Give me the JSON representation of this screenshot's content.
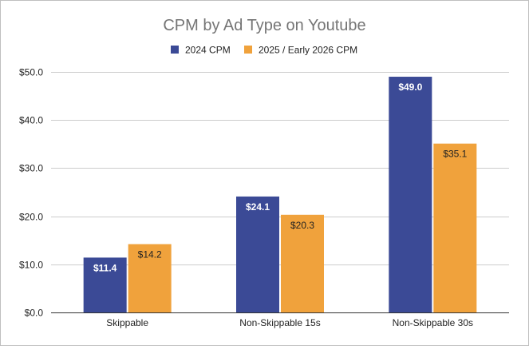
{
  "chart_data": {
    "type": "bar",
    "title": "CPM by Ad Type on Youtube",
    "xlabel": "",
    "ylabel": "",
    "categories": [
      "Skippable",
      "Non-Skippable 15s",
      "Non-Skippable 30s"
    ],
    "series": [
      {
        "name": "2024 CPM",
        "color": "#3b4a96",
        "values": [
          11.4,
          24.1,
          49.0
        ],
        "labels": [
          "$11.4",
          "$24.1",
          "$49.0"
        ]
      },
      {
        "name": "2025 / Early 2026 CPM",
        "color": "#f0a23c",
        "values": [
          14.2,
          20.3,
          35.1
        ],
        "labels": [
          "$14.2",
          "$20.3",
          "$35.1"
        ]
      }
    ],
    "ylim": [
      0,
      50
    ],
    "yticks": [
      0,
      10,
      20,
      30,
      40,
      50
    ],
    "ytick_labels": [
      "$0.0",
      "$10.0",
      "$20.0",
      "$30.0",
      "$40.0",
      "$50.0"
    ],
    "legend_position": "top-center",
    "grid": true
  }
}
